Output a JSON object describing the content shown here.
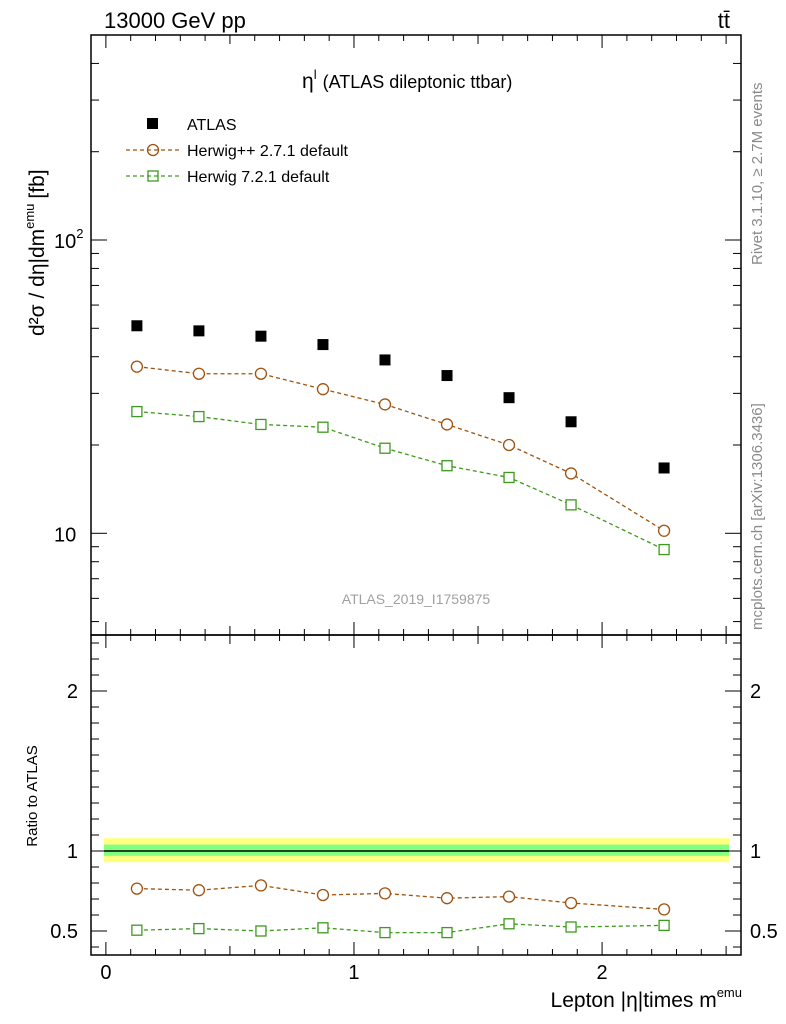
{
  "header": {
    "energy_label": "13000 GeV pp",
    "process_label": "tt̄"
  },
  "side_text": {
    "rivet": "Rivet 3.1.10, ≥ 2.7M events",
    "mcplots": "mcplots.cern.ch [arXiv:1306.3436]"
  },
  "analysis_id": "ATLAS_2019_I1759875",
  "colors": {
    "data": "#000000",
    "herwigpp": "#a0520c",
    "herwig7": "#3d9a1e",
    "band_outer": "#ffff80",
    "band_inner": "#80ff80"
  },
  "chart_data": [
    {
      "type": "scatter",
      "title_symbol": "η",
      "title_sup": "l",
      "title_rest": "(ATLAS dileptonic ttbar)",
      "y_axis": {
        "scale": "log",
        "ylim": [
          4.5,
          500
        ],
        "label_main": "d²σ / dη|dm",
        "label_sup": "emu",
        "label_unit": "[fb]",
        "major_ticks": [
          {
            "value": 10,
            "base": "10",
            "exp": ""
          },
          {
            "value": 100,
            "base": "10",
            "exp": "2"
          }
        ]
      },
      "x_axis": {
        "xlim": [
          -0.06,
          2.56
        ],
        "label_main": "Lepton |η|times m",
        "label_sup": "emu",
        "ticks": [
          0,
          1,
          2
        ]
      },
      "x": [
        0.125,
        0.375,
        0.625,
        0.875,
        1.125,
        1.375,
        1.625,
        1.875,
        2.25
      ],
      "series": [
        {
          "name": "ATLAS",
          "marker": "filled-square",
          "values": [
            51,
            49,
            47,
            44,
            39,
            34.5,
            29,
            24,
            16.7
          ]
        },
        {
          "name": "Herwig++ 2.7.1 default",
          "marker": "open-circle",
          "values": [
            37,
            35,
            35,
            31,
            27.5,
            23.5,
            20,
            16,
            10.2
          ]
        },
        {
          "name": "Herwig 7.2.1 default",
          "marker": "open-square",
          "values": [
            26,
            25,
            23.5,
            23,
            19.5,
            17,
            15.5,
            12.5,
            8.8
          ]
        }
      ],
      "legend_position": "top-left"
    },
    {
      "type": "scatter",
      "y_axis": {
        "scale": "linear",
        "ylim": [
          0.35,
          2.35
        ],
        "label": "Ratio to ATLAS",
        "ticks": [
          0.5,
          1,
          2
        ],
        "tick_labels": [
          "0.5",
          "1",
          "2"
        ]
      },
      "x_axis": {
        "xlim": [
          -0.06,
          2.56
        ]
      },
      "reference_line": 1,
      "bands": {
        "outer": [
          0.93,
          1.08
        ],
        "inner": [
          0.97,
          1.04
        ]
      },
      "x": [
        0.125,
        0.375,
        0.625,
        0.875,
        1.125,
        1.375,
        1.625,
        1.875,
        2.25
      ],
      "series": [
        {
          "name": "Herwig++ 2.7.1 default",
          "marker": "open-circle",
          "values": [
            0.765,
            0.755,
            0.785,
            0.725,
            0.735,
            0.705,
            0.715,
            0.675,
            0.635
          ]
        },
        {
          "name": "Herwig 7.2.1 default",
          "marker": "open-square",
          "values": [
            0.505,
            0.515,
            0.5,
            0.52,
            0.49,
            0.49,
            0.545,
            0.525,
            0.535
          ]
        }
      ]
    }
  ]
}
